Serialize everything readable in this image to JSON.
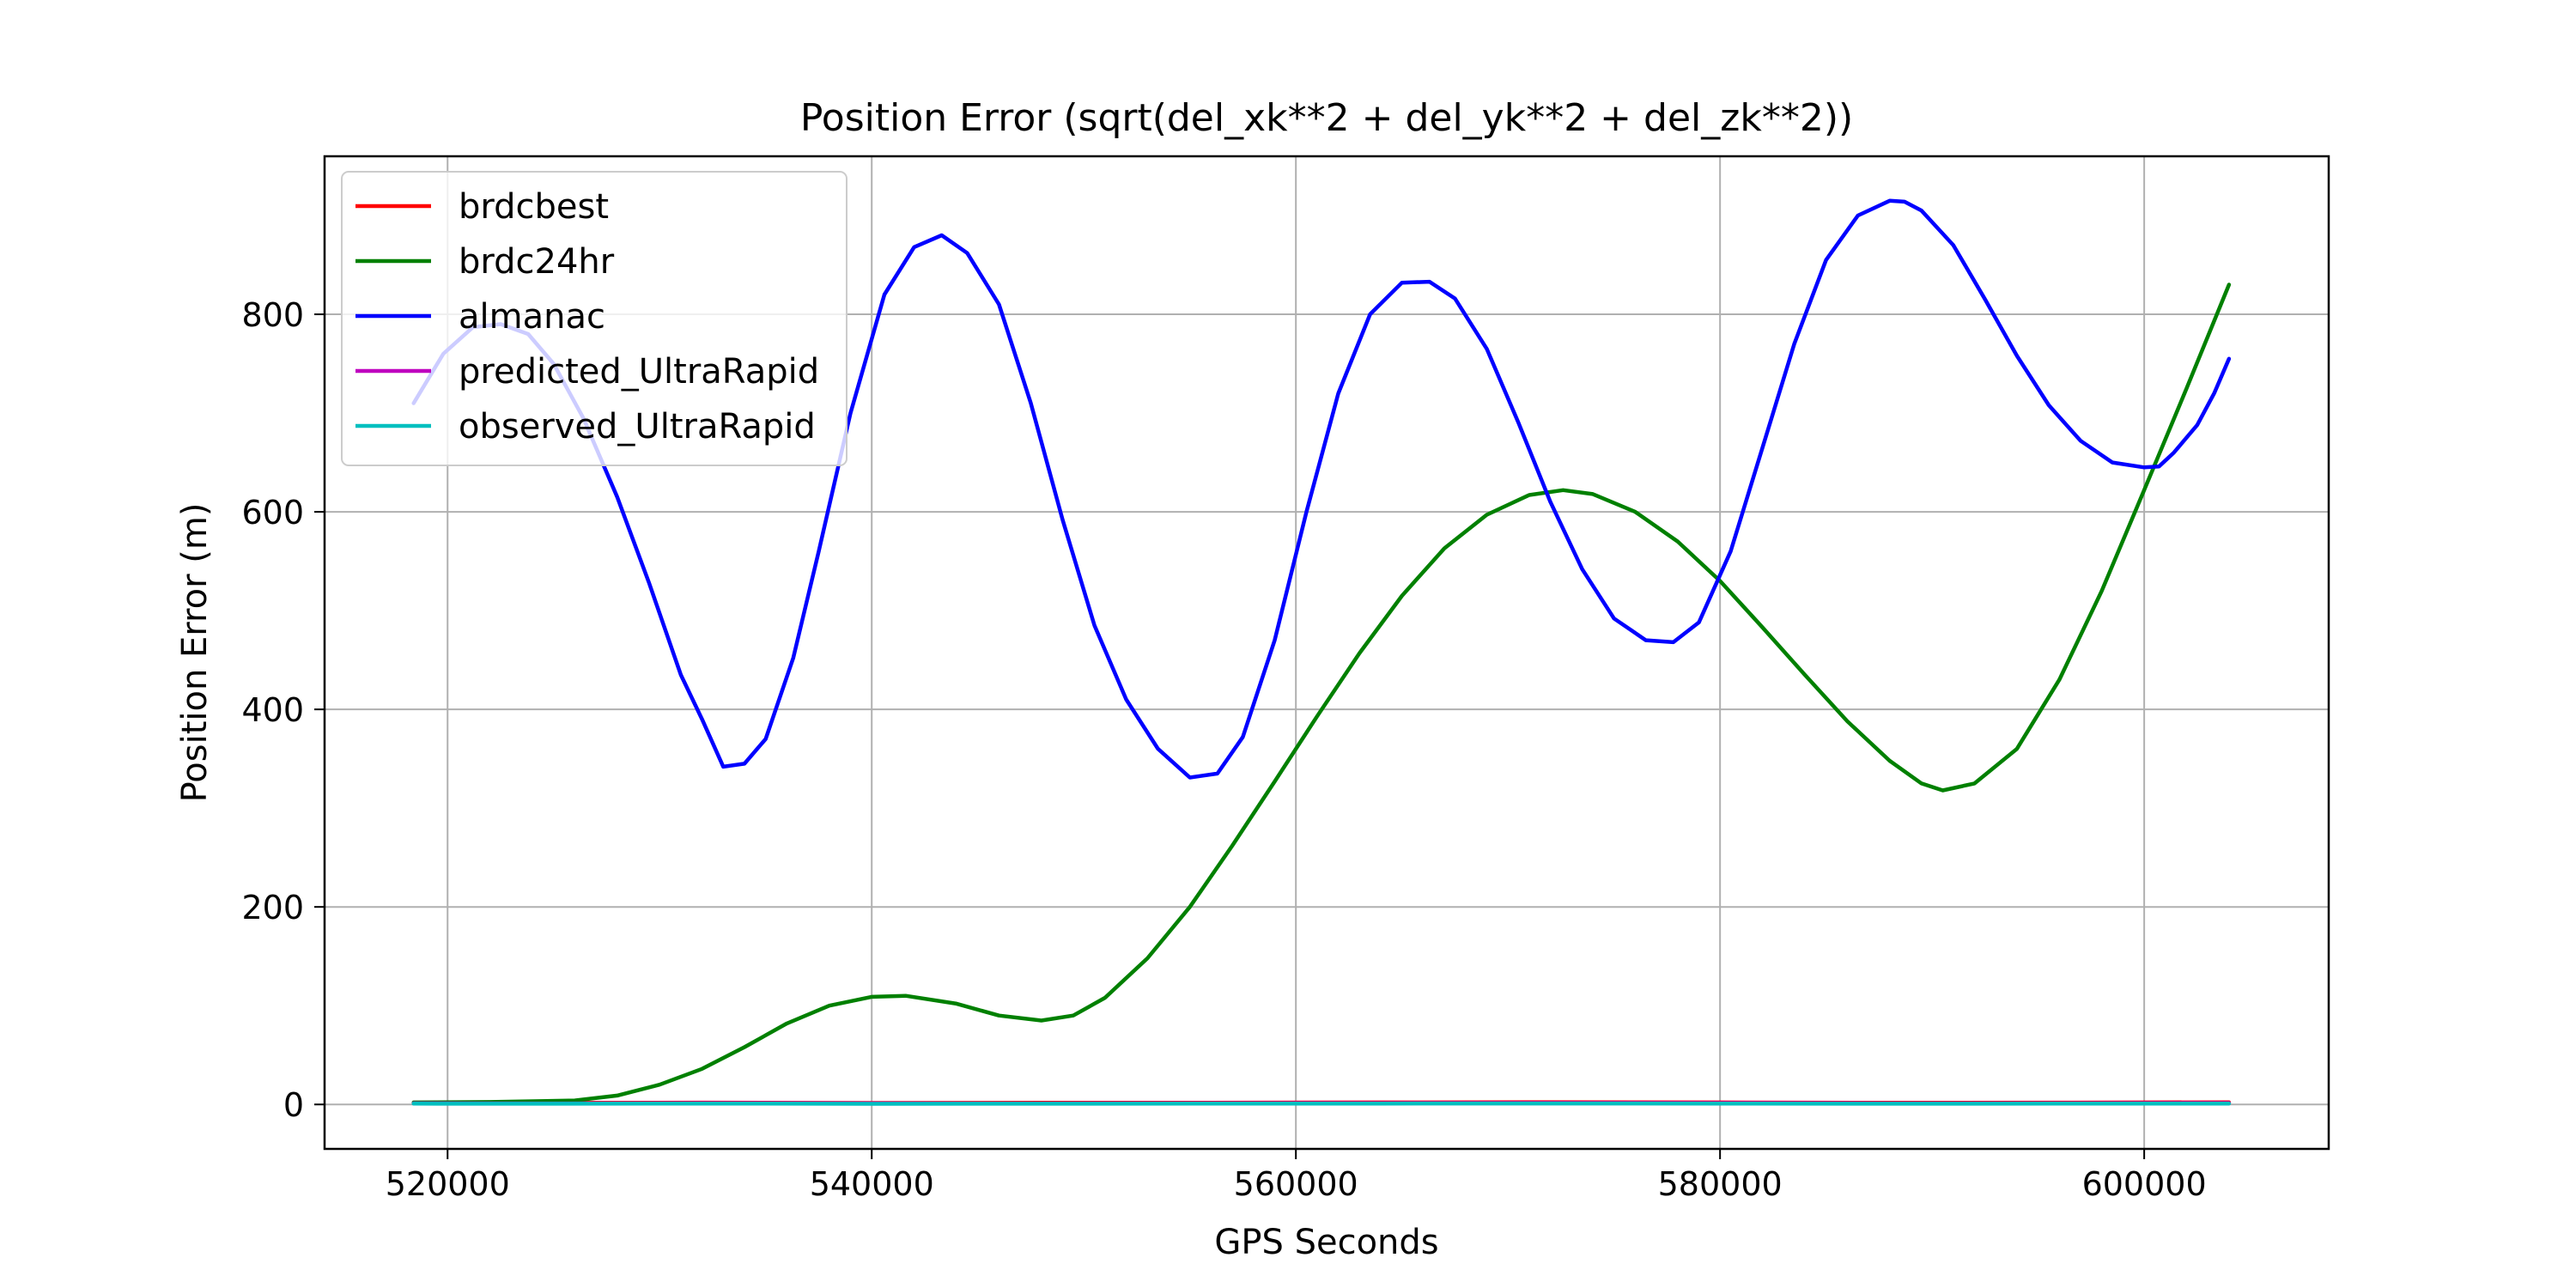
{
  "chart_data": {
    "type": "line",
    "title": "Position Error (sqrt(del_xk**2 + del_yk**2 + del_zk**2))",
    "xlabel": "GPS Seconds",
    "ylabel": "Position Error (m)",
    "xlim": [
      514200,
      608700
    ],
    "ylim": [
      -45,
      960
    ],
    "xticks": [
      520000,
      540000,
      560000,
      580000,
      600000
    ],
    "yticks": [
      0,
      200,
      400,
      600,
      800
    ],
    "xtick_labels": [
      "520000",
      "540000",
      "560000",
      "580000",
      "600000"
    ],
    "ytick_labels": [
      "0",
      "200",
      "400",
      "600",
      "800"
    ],
    "grid": true,
    "legend_position": "upper-left",
    "series": [
      {
        "name": "brdcbest",
        "color": "#ff0000",
        "x": [
          518400,
          525000,
          532000,
          540000,
          548000,
          556000,
          564000,
          572000,
          580000,
          588000,
          596000,
          604000
        ],
        "y": [
          1.8,
          1.6,
          1.9,
          1.5,
          1.7,
          1.8,
          2.0,
          2.3,
          2.0,
          1.7,
          1.9,
          2.2
        ]
      },
      {
        "name": "brdc24hr",
        "color": "#008000",
        "x": [
          518400,
          522000,
          526000,
          528000,
          530000,
          532000,
          534000,
          536000,
          538000,
          540000,
          541600,
          544000,
          546000,
          548000,
          549500,
          551000,
          553000,
          555000,
          557000,
          559000,
          561000,
          563000,
          565000,
          567000,
          569000,
          571000,
          572600,
          574000,
          576000,
          578000,
          580000,
          582000,
          584000,
          586000,
          588000,
          589500,
          590500,
          592000,
          594000,
          596000,
          598000,
          600000,
          602000,
          604000
        ],
        "y": [
          2,
          2.5,
          4,
          9,
          20,
          36,
          58,
          82,
          100,
          109,
          110,
          102,
          90,
          85,
          90,
          108,
          148,
          200,
          262,
          327,
          393,
          457,
          515,
          563,
          597,
          617,
          622,
          618,
          600,
          570,
          530,
          483,
          435,
          388,
          348,
          325,
          318,
          325,
          360,
          430,
          520,
          622,
          725,
          830
        ]
      },
      {
        "name": "almanac",
        "color": "#0000ff",
        "x": [
          518400,
          519800,
          521200,
          522500,
          523800,
          525000,
          526400,
          528000,
          529500,
          531000,
          532000,
          533000,
          534000,
          535000,
          536300,
          537500,
          539000,
          540600,
          542000,
          543300,
          544500,
          546000,
          547500,
          549000,
          550500,
          552000,
          553500,
          555000,
          556300,
          557500,
          559000,
          560500,
          562000,
          563500,
          565000,
          566300,
          567500,
          569000,
          570500,
          572000,
          573500,
          575000,
          576500,
          577800,
          579000,
          580500,
          582000,
          583500,
          585000,
          586500,
          588000,
          588700,
          589500,
          591000,
          592500,
          594000,
          595500,
          597000,
          598500,
          600000,
          600700,
          601400,
          602500,
          603300,
          604000
        ],
        "y": [
          710,
          760,
          787,
          790,
          780,
          750,
          695,
          615,
          528,
          435,
          390,
          342,
          345,
          370,
          452,
          560,
          700,
          820,
          868,
          880,
          862,
          810,
          710,
          592,
          485,
          410,
          360,
          331,
          335,
          372,
          470,
          600,
          720,
          800,
          832,
          833,
          816,
          765,
          690,
          610,
          542,
          492,
          470,
          468,
          488,
          560,
          665,
          770,
          855,
          900,
          915,
          914,
          905,
          870,
          815,
          758,
          708,
          672,
          650,
          645,
          646,
          660,
          688,
          720,
          755
        ]
      },
      {
        "name": "predicted_UltraRapid",
        "color": "#bf00bf",
        "x": [
          518400,
          525000,
          532000,
          540000,
          548000,
          556000,
          564000,
          572000,
          580000,
          588000,
          596000,
          604000
        ],
        "y": [
          1.2,
          1.0,
          1.3,
          1.1,
          1.0,
          1.2,
          1.3,
          1.5,
          1.4,
          1.1,
          1.2,
          1.4
        ]
      },
      {
        "name": "observed_UltraRapid",
        "color": "#00bfbf",
        "x": [
          518400,
          525000,
          532000,
          540000,
          548000,
          556000,
          564000,
          572000,
          580000,
          588000,
          596000,
          604000
        ],
        "y": [
          0.8,
          0.7,
          0.9,
          0.6,
          0.7,
          0.8,
          0.9,
          1.0,
          0.9,
          0.7,
          0.8,
          0.9
        ]
      }
    ]
  }
}
